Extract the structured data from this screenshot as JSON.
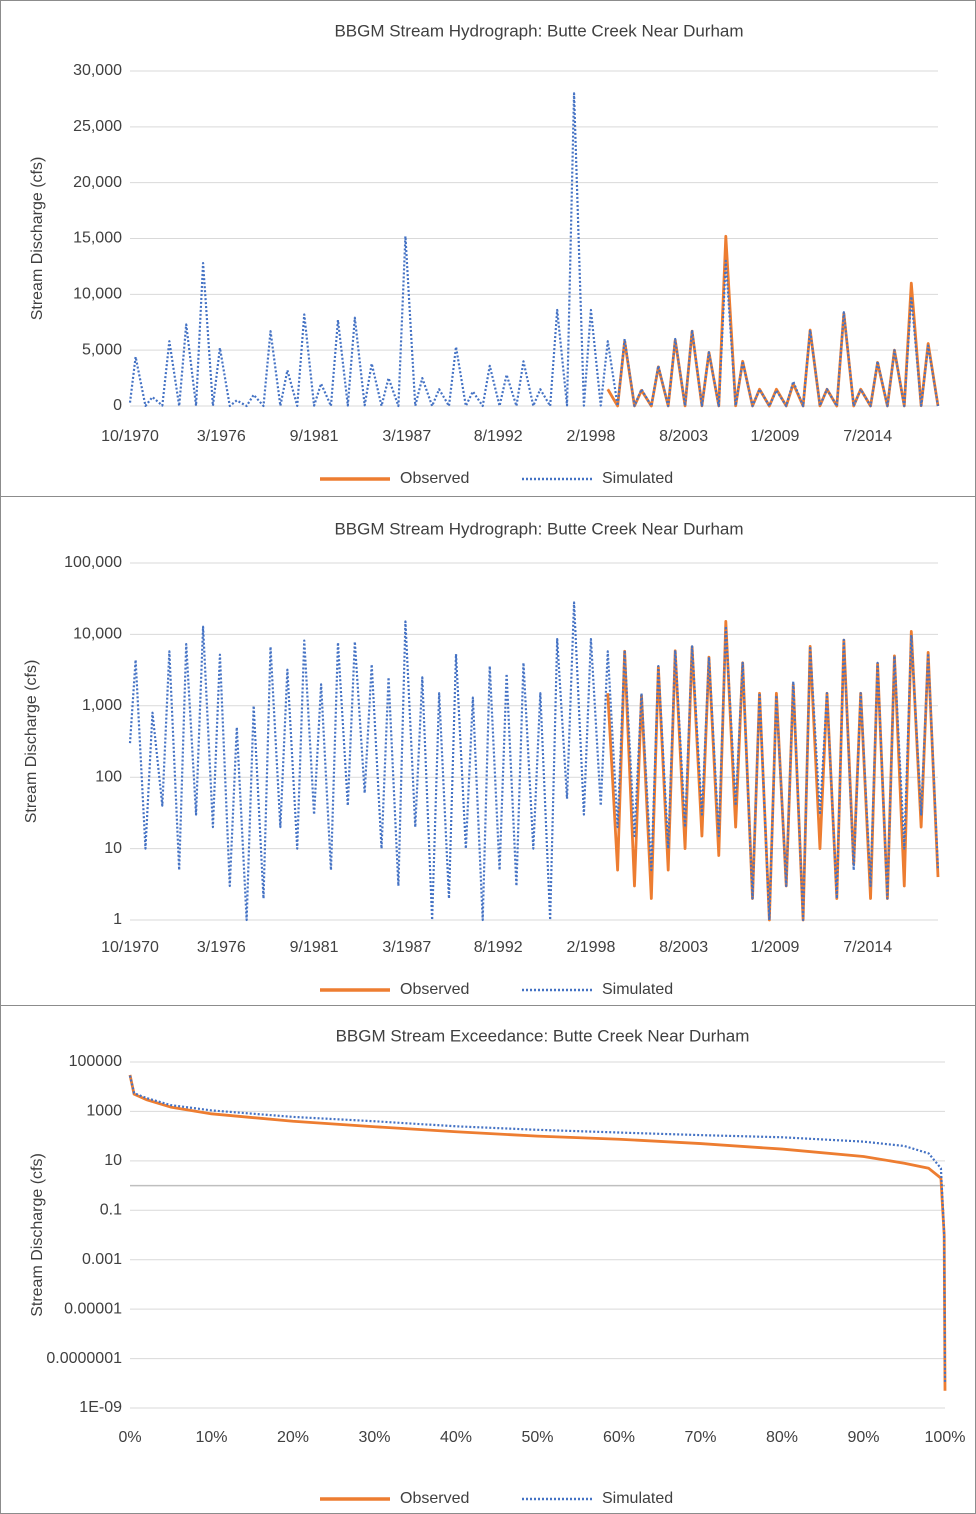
{
  "chart_data": [
    {
      "type": "line",
      "title": "BBGM Stream Hydrograph: Butte Creek Near Durham",
      "y_label": "Stream Discharge (cfs)",
      "log_y": false,
      "grid": true,
      "legend": "bottom",
      "xlim": [
        "10/1970",
        "9/2018"
      ],
      "xticks": [
        "10/1970",
        "3/1976",
        "9/1981",
        "3/1987",
        "8/1992",
        "2/1998",
        "8/2003",
        "1/2009",
        "7/2014"
      ],
      "ylim": [
        0,
        30000
      ],
      "yticks": [
        0,
        {
          "value": 5000,
          "label": "5,000"
        },
        {
          "value": 10000,
          "label": "10,000"
        },
        {
          "value": 15000,
          "label": "15,000"
        },
        {
          "value": 20000,
          "label": "20,000"
        },
        {
          "value": 25000,
          "label": "25,000"
        },
        {
          "value": 30000,
          "label": "30,000"
        }
      ],
      "x": [
        "10/1970",
        "2/1971",
        "9/1971",
        "2/1972",
        "9/1972",
        "2/1973",
        "9/1973",
        "2/1974",
        "9/1974",
        "2/1975",
        "9/1975",
        "2/1976",
        "9/1976",
        "2/1977",
        "9/1977",
        "2/1978",
        "9/1978",
        "2/1979",
        "9/1979",
        "2/1980",
        "9/1980",
        "2/1981",
        "9/1981",
        "2/1982",
        "9/1982",
        "2/1983",
        "9/1983",
        "2/1984",
        "9/1984",
        "2/1985",
        "9/1985",
        "2/1986",
        "9/1986",
        "2/1987",
        "9/1987",
        "2/1988",
        "9/1988",
        "2/1989",
        "9/1989",
        "2/1990",
        "9/1990",
        "2/1991",
        "9/1991",
        "2/1992",
        "9/1992",
        "2/1993",
        "9/1993",
        "2/1994",
        "9/1994",
        "2/1995",
        "9/1995",
        "2/1996",
        "9/1996",
        "2/1997",
        "9/1997",
        "2/1998",
        "9/1998",
        "2/1999",
        "9/1999",
        "2/2000",
        "9/2000",
        "2/2001",
        "9/2001",
        "2/2002",
        "9/2002",
        "2/2003",
        "9/2003",
        "2/2004",
        "9/2004",
        "2/2005",
        "9/2005",
        "2/2006",
        "9/2006",
        "2/2007",
        "9/2007",
        "2/2008",
        "9/2008",
        "2/2009",
        "9/2009",
        "2/2010",
        "9/2010",
        "2/2011",
        "9/2011",
        "2/2012",
        "9/2012",
        "2/2013",
        "9/2013",
        "2/2014",
        "9/2014",
        "2/2015",
        "9/2015",
        "2/2016",
        "9/2016",
        "2/2017",
        "9/2017",
        "2/2018",
        "9/2018"
      ],
      "series": [
        {
          "name": "Observed",
          "color": "#ed7d31",
          "style": "solid",
          "values": [
            null,
            null,
            null,
            null,
            null,
            null,
            null,
            null,
            null,
            null,
            null,
            null,
            null,
            null,
            null,
            null,
            null,
            null,
            null,
            null,
            null,
            null,
            null,
            null,
            null,
            null,
            null,
            null,
            null,
            null,
            null,
            null,
            null,
            null,
            null,
            null,
            null,
            null,
            null,
            null,
            null,
            null,
            null,
            null,
            null,
            null,
            null,
            null,
            null,
            null,
            null,
            null,
            null,
            null,
            null,
            null,
            null,
            1500,
            5,
            5800,
            3,
            1400,
            2,
            3500,
            5,
            5900,
            10,
            6700,
            15,
            4800,
            8,
            15200,
            20,
            4000,
            2,
            1500,
            1,
            1500,
            3,
            2000,
            1,
            6800,
            10,
            1500,
            2,
            8300,
            6,
            1500,
            2,
            3900,
            2,
            5000,
            3,
            11000,
            20,
            5600,
            4
          ]
        },
        {
          "name": "Simulated",
          "color": "#4472c4",
          "style": "dotted",
          "values": [
            300,
            4400,
            10,
            800,
            40,
            5800,
            5,
            7300,
            30,
            12800,
            20,
            5200,
            3,
            500,
            1,
            1000,
            2,
            6700,
            20,
            3200,
            10,
            8200,
            30,
            2000,
            5,
            7700,
            40,
            7900,
            60,
            3800,
            10,
            2500,
            3,
            15200,
            20,
            2500,
            1,
            1500,
            2,
            5300,
            10,
            1300,
            1,
            3600,
            5,
            2800,
            3,
            4000,
            10,
            1500,
            1,
            8600,
            50,
            28000,
            30,
            8600,
            40,
            5800,
            20,
            6000,
            15,
            1500,
            5,
            3600,
            10,
            6000,
            20,
            6800,
            30,
            4800,
            15,
            13000,
            40,
            4000,
            2,
            1500,
            1,
            1400,
            3,
            2200,
            1,
            6800,
            30,
            1500,
            2,
            8400,
            5,
            1500,
            3,
            4000,
            2,
            5000,
            10,
            9800,
            30,
            5400,
            5
          ]
        }
      ]
    },
    {
      "type": "line",
      "title": "BBGM Stream Hydrograph: Butte Creek Near Durham",
      "y_label": "Stream Discharge (cfs)",
      "log_y": true,
      "grid": true,
      "legend": "bottom",
      "xlim": [
        "10/1970",
        "9/2018"
      ],
      "xticks": [
        "10/1970",
        "3/1976",
        "9/1981",
        "3/1987",
        "8/1992",
        "2/1998",
        "8/2003",
        "1/2009",
        "7/2014"
      ],
      "ylim": [
        1,
        100000
      ],
      "yticks": [
        1,
        10,
        100,
        {
          "value": 1000,
          "label": "1,000"
        },
        {
          "value": 10000,
          "label": "10,000"
        },
        {
          "value": 100000,
          "label": "100,000"
        }
      ],
      "x": [
        "10/1970",
        "2/1971",
        "9/1971",
        "2/1972",
        "9/1972",
        "2/1973",
        "9/1973",
        "2/1974",
        "9/1974",
        "2/1975",
        "9/1975",
        "2/1976",
        "9/1976",
        "2/1977",
        "9/1977",
        "2/1978",
        "9/1978",
        "2/1979",
        "9/1979",
        "2/1980",
        "9/1980",
        "2/1981",
        "9/1981",
        "2/1982",
        "9/1982",
        "2/1983",
        "9/1983",
        "2/1984",
        "9/1984",
        "2/1985",
        "9/1985",
        "2/1986",
        "9/1986",
        "2/1987",
        "9/1987",
        "2/1988",
        "9/1988",
        "2/1989",
        "9/1989",
        "2/1990",
        "9/1990",
        "2/1991",
        "9/1991",
        "2/1992",
        "9/1992",
        "2/1993",
        "9/1993",
        "2/1994",
        "9/1994",
        "2/1995",
        "9/1995",
        "2/1996",
        "9/1996",
        "2/1997",
        "9/1997",
        "2/1998",
        "9/1998",
        "2/1999",
        "9/1999",
        "2/2000",
        "9/2000",
        "2/2001",
        "9/2001",
        "2/2002",
        "9/2002",
        "2/2003",
        "9/2003",
        "2/2004",
        "9/2004",
        "2/2005",
        "9/2005",
        "2/2006",
        "9/2006",
        "2/2007",
        "9/2007",
        "2/2008",
        "9/2008",
        "2/2009",
        "9/2009",
        "2/2010",
        "9/2010",
        "2/2011",
        "9/2011",
        "2/2012",
        "9/2012",
        "2/2013",
        "9/2013",
        "2/2014",
        "9/2014",
        "2/2015",
        "9/2015",
        "2/2016",
        "9/2016",
        "2/2017",
        "9/2017",
        "2/2018",
        "9/2018"
      ],
      "series": [
        {
          "name": "Observed",
          "color": "#ed7d31",
          "style": "solid",
          "values": [
            null,
            null,
            null,
            null,
            null,
            null,
            null,
            null,
            null,
            null,
            null,
            null,
            null,
            null,
            null,
            null,
            null,
            null,
            null,
            null,
            null,
            null,
            null,
            null,
            null,
            null,
            null,
            null,
            null,
            null,
            null,
            null,
            null,
            null,
            null,
            null,
            null,
            null,
            null,
            null,
            null,
            null,
            null,
            null,
            null,
            null,
            null,
            null,
            null,
            null,
            null,
            null,
            null,
            null,
            null,
            null,
            null,
            1500,
            5,
            5800,
            3,
            1400,
            2,
            3500,
            5,
            5900,
            10,
            6700,
            15,
            4800,
            8,
            15200,
            20,
            4000,
            2,
            1500,
            1,
            1500,
            3,
            2000,
            1,
            6800,
            10,
            1500,
            2,
            8300,
            6,
            1500,
            2,
            3900,
            2,
            5000,
            3,
            11000,
            20,
            5600,
            4
          ]
        },
        {
          "name": "Simulated",
          "color": "#4472c4",
          "style": "dotted",
          "values": [
            300,
            4400,
            10,
            800,
            40,
            5800,
            5,
            7300,
            30,
            12800,
            20,
            5200,
            3,
            500,
            1,
            1000,
            2,
            6700,
            20,
            3200,
            10,
            8200,
            30,
            2000,
            5,
            7700,
            40,
            7900,
            60,
            3800,
            10,
            2500,
            3,
            15200,
            20,
            2500,
            1,
            1500,
            2,
            5300,
            10,
            1300,
            1,
            3600,
            5,
            2800,
            3,
            4000,
            10,
            1500,
            1,
            8600,
            50,
            28000,
            30,
            8600,
            40,
            5800,
            20,
            6000,
            15,
            1500,
            5,
            3600,
            10,
            6000,
            20,
            6800,
            30,
            4800,
            15,
            13000,
            40,
            4000,
            2,
            1500,
            1,
            1400,
            3,
            2200,
            1,
            6800,
            30,
            1500,
            2,
            8400,
            5,
            1500,
            3,
            4000,
            2,
            5000,
            10,
            9800,
            30,
            5400,
            5
          ]
        }
      ]
    },
    {
      "type": "line",
      "title": "BBGM Stream Exceedance: Butte Creek Near Durham",
      "y_label": "Stream Discharge (cfs)",
      "log_y": true,
      "grid": true,
      "legend": "bottom",
      "axis_crosses": 1,
      "xlim": [
        0,
        100
      ],
      "xticks": [
        {
          "value": 0,
          "label": "0%"
        },
        {
          "value": 10,
          "label": "10%"
        },
        {
          "value": 20,
          "label": "20%"
        },
        {
          "value": 30,
          "label": "30%"
        },
        {
          "value": 40,
          "label": "40%"
        },
        {
          "value": 50,
          "label": "50%"
        },
        {
          "value": 60,
          "label": "60%"
        },
        {
          "value": 70,
          "label": "70%"
        },
        {
          "value": 80,
          "label": "80%"
        },
        {
          "value": 90,
          "label": "90%"
        },
        {
          "value": 100,
          "label": "100%"
        }
      ],
      "ylim": [
        1e-09,
        100000
      ],
      "yticks": [
        {
          "value": 1e-09,
          "label": "1E-09"
        },
        {
          "value": 1e-07,
          "label": "0.0000001"
        },
        1e-05,
        0.001,
        0.1,
        10,
        1000,
        100000
      ],
      "x": [
        0,
        0.5,
        2,
        5,
        10,
        20,
        30,
        40,
        50,
        60,
        70,
        80,
        90,
        95,
        98,
        99.5,
        99.9,
        100
      ],
      "series": [
        {
          "name": "Observed",
          "color": "#ed7d31",
          "style": "solid",
          "values": [
            30000,
            5000,
            3000,
            1500,
            800,
            400,
            240,
            150,
            100,
            75,
            50,
            30,
            15,
            8,
            5,
            2,
            0.01,
            5e-09
          ]
        },
        {
          "name": "Simulated",
          "color": "#4472c4",
          "style": "dotted",
          "values": [
            28000,
            5500,
            3500,
            1800,
            1100,
            600,
            400,
            250,
            180,
            140,
            110,
            90,
            60,
            40,
            20,
            5,
            0.01,
            1e-08
          ]
        }
      ]
    }
  ]
}
